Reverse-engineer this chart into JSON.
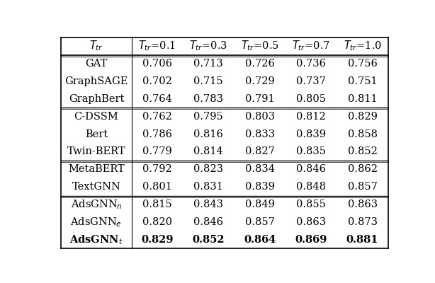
{
  "col_headers": [
    "$T_{tr}$",
    "$T_{tr}$=0.1",
    "$T_{tr}$=0.3",
    "$T_{tr}$=0.5",
    "$T_{tr}$=0.7",
    "$T_{tr}$=1.0"
  ],
  "rows": [
    [
      "GAT",
      "0.706",
      "0.713",
      "0.726",
      "0.736",
      "0.756"
    ],
    [
      "GraphSAGE",
      "0.702",
      "0.715",
      "0.729",
      "0.737",
      "0.751"
    ],
    [
      "GraphBert",
      "0.764",
      "0.783",
      "0.791",
      "0.805",
      "0.811"
    ],
    [
      "C-DSSM",
      "0.762",
      "0.795",
      "0.803",
      "0.812",
      "0.829"
    ],
    [
      "Bert",
      "0.786",
      "0.816",
      "0.833",
      "0.839",
      "0.858"
    ],
    [
      "Twin-BERT",
      "0.779",
      "0.814",
      "0.827",
      "0.835",
      "0.852"
    ],
    [
      "MetaBERT",
      "0.792",
      "0.823",
      "0.834",
      "0.846",
      "0.862"
    ],
    [
      "TextGNN",
      "0.801",
      "0.831",
      "0.839",
      "0.848",
      "0.857"
    ],
    [
      "AdsGNN_n",
      "0.815",
      "0.843",
      "0.849",
      "0.855",
      "0.863"
    ],
    [
      "AdsGNN_e",
      "0.820",
      "0.846",
      "0.857",
      "0.863",
      "0.873"
    ],
    [
      "AdsGNN_t",
      "0.829",
      "0.852",
      "0.864",
      "0.869",
      "0.881"
    ]
  ],
  "row_labels_math": [
    "GAT",
    "GraphSAGE",
    "GraphBert",
    "C-DSSM",
    "Bert",
    "Twin-BERT",
    "MetaBERT",
    "TextGNN",
    "AdsGNN$_n$",
    "AdsGNN$_e$",
    "AdsGNN$_t$"
  ],
  "bold_row": 10,
  "group_after": [
    2,
    5,
    7
  ],
  "bg_color": "#ffffff",
  "text_color": "#000000",
  "font_size": 10.5,
  "header_font_size": 10.5
}
